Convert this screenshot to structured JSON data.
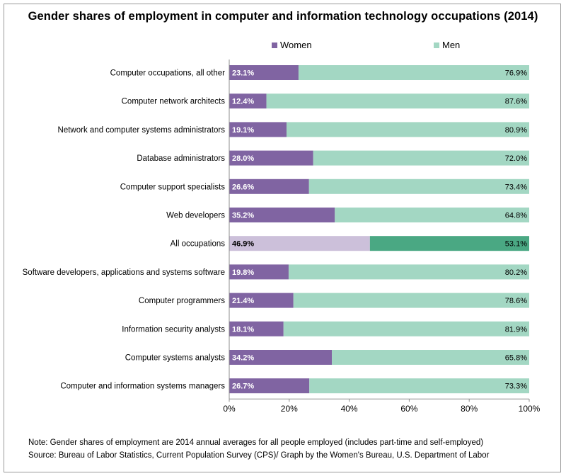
{
  "title": "Gender shares of employment in computer and information technology occupations (2014)",
  "legend": {
    "women_label": "Women",
    "men_label": "Men"
  },
  "colors": {
    "women": "#8064a2",
    "men": "#a3d7c3",
    "women_highlight": "#ccc0da",
    "men_highlight": "#4aa883"
  },
  "chart_data": {
    "type": "bar",
    "orientation": "horizontal",
    "stacked": true,
    "categories": [
      "Computer occupations, all other",
      "Computer network architects",
      "Network and computer systems administrators",
      "Database administrators",
      "Computer support specialists",
      "Web developers",
      "All occupations",
      "Software developers, applications and systems software",
      "Computer programmers",
      "Information security analysts",
      "Computer systems analysts",
      "Computer and information systems managers"
    ],
    "series": [
      {
        "name": "Women",
        "values": [
          23.1,
          12.4,
          19.1,
          28.0,
          26.6,
          35.2,
          46.9,
          19.8,
          21.4,
          18.1,
          34.2,
          26.7
        ]
      },
      {
        "name": "Men",
        "values": [
          76.9,
          87.6,
          80.9,
          72.0,
          73.4,
          64.8,
          53.1,
          80.2,
          78.6,
          81.9,
          65.8,
          73.3
        ]
      }
    ],
    "value_labels": {
      "women": [
        "23.1%",
        "12.4%",
        "19.1%",
        "28.0%",
        "26.6%",
        "35.2%",
        "46.9%",
        "19.8%",
        "21.4%",
        "18.1%",
        "34.2%",
        "26.7%"
      ],
      "men": [
        "76.9%",
        "87.6%",
        "80.9%",
        "72.0%",
        "73.4%",
        "64.8%",
        "53.1%",
        "80.2%",
        "78.6%",
        "81.9%",
        "65.8%",
        "73.3%"
      ]
    },
    "highlight_category": "All occupations",
    "xlim": [
      0,
      100
    ],
    "x_ticks": [
      "0%",
      "20%",
      "40%",
      "60%",
      "80%",
      "100%"
    ],
    "grid": false,
    "legend_position": "top"
  },
  "footer": {
    "note": "Note: Gender shares of employment are 2014 annual averages for all people employed (includes part-time and self-employed)",
    "source": "Source: Bureau of Labor Statistics, Current Population Survey (CPS)/ Graph by the Women's Bureau, U.S. Department of Labor"
  }
}
